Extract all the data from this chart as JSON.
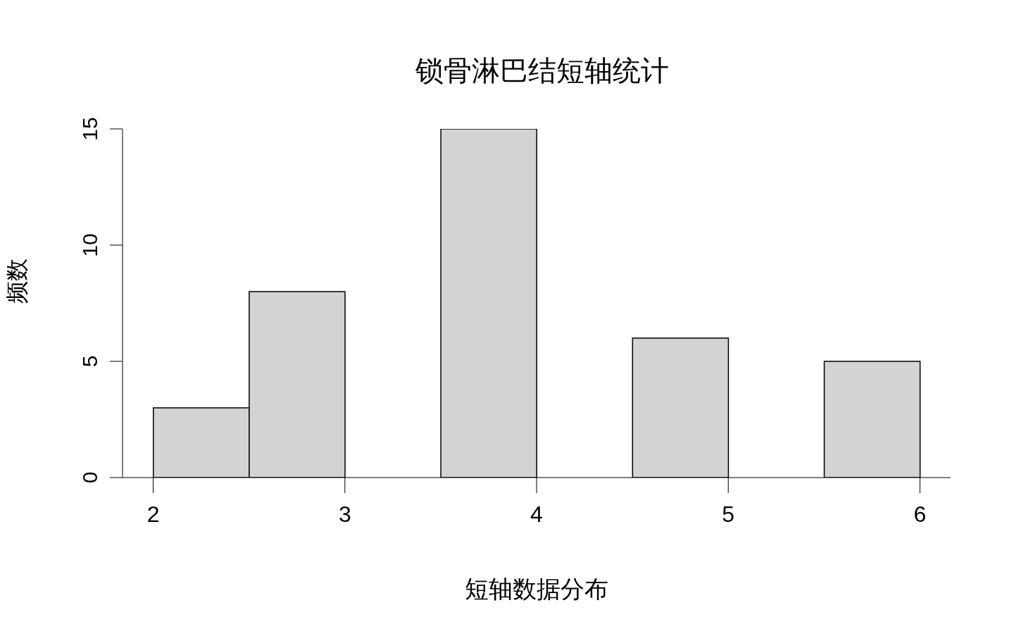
{
  "chart_data": {
    "type": "histogram",
    "title": "锁骨淋巴结短轴统计",
    "xlabel": "短轴数据分布",
    "ylabel": "频数",
    "bins": [
      2,
      2.5,
      3,
      3.5,
      4,
      4.5,
      5,
      5.5,
      6
    ],
    "values": [
      3,
      8,
      0,
      15,
      0,
      6,
      0,
      5
    ],
    "color": "#d3d3d3",
    "xlim": [
      1.84,
      6.16
    ],
    "xticks": [
      2,
      3,
      4,
      5,
      6
    ],
    "ylim": [
      0,
      15
    ],
    "yticks": [
      0,
      5,
      10,
      15
    ]
  }
}
